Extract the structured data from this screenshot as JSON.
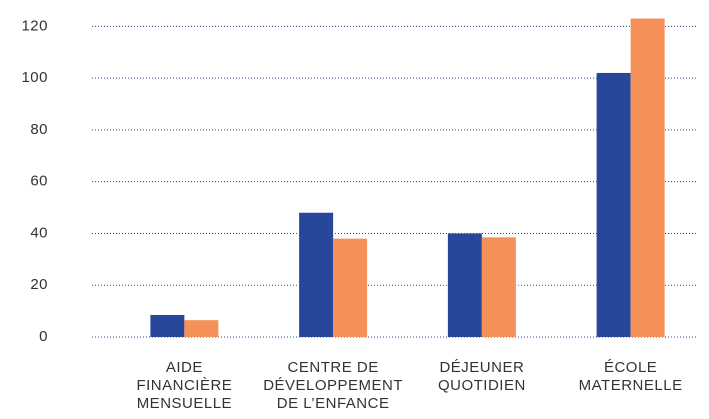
{
  "chart_data": {
    "type": "bar",
    "categories": [
      [
        "AIDE",
        "FINANCIÈRE",
        "MENSUELLE"
      ],
      [
        "CENTRE DE",
        "DÉVELOPPEMENT",
        "DE L’ENFANCE"
      ],
      [
        "DÉJEUNER",
        "QUOTIDIEN"
      ],
      [
        "ÉCOLE",
        "MATERNELLE"
      ]
    ],
    "series": [
      {
        "color": "#26479a",
        "values": [
          8.5,
          48,
          40,
          102
        ]
      },
      {
        "color": "#f59059",
        "values": [
          6.5,
          38,
          38.5,
          123
        ]
      }
    ],
    "ylim": [
      0,
      124
    ],
    "yticks": [
      0,
      20,
      40,
      60,
      80,
      100,
      120
    ],
    "grid": true
  }
}
